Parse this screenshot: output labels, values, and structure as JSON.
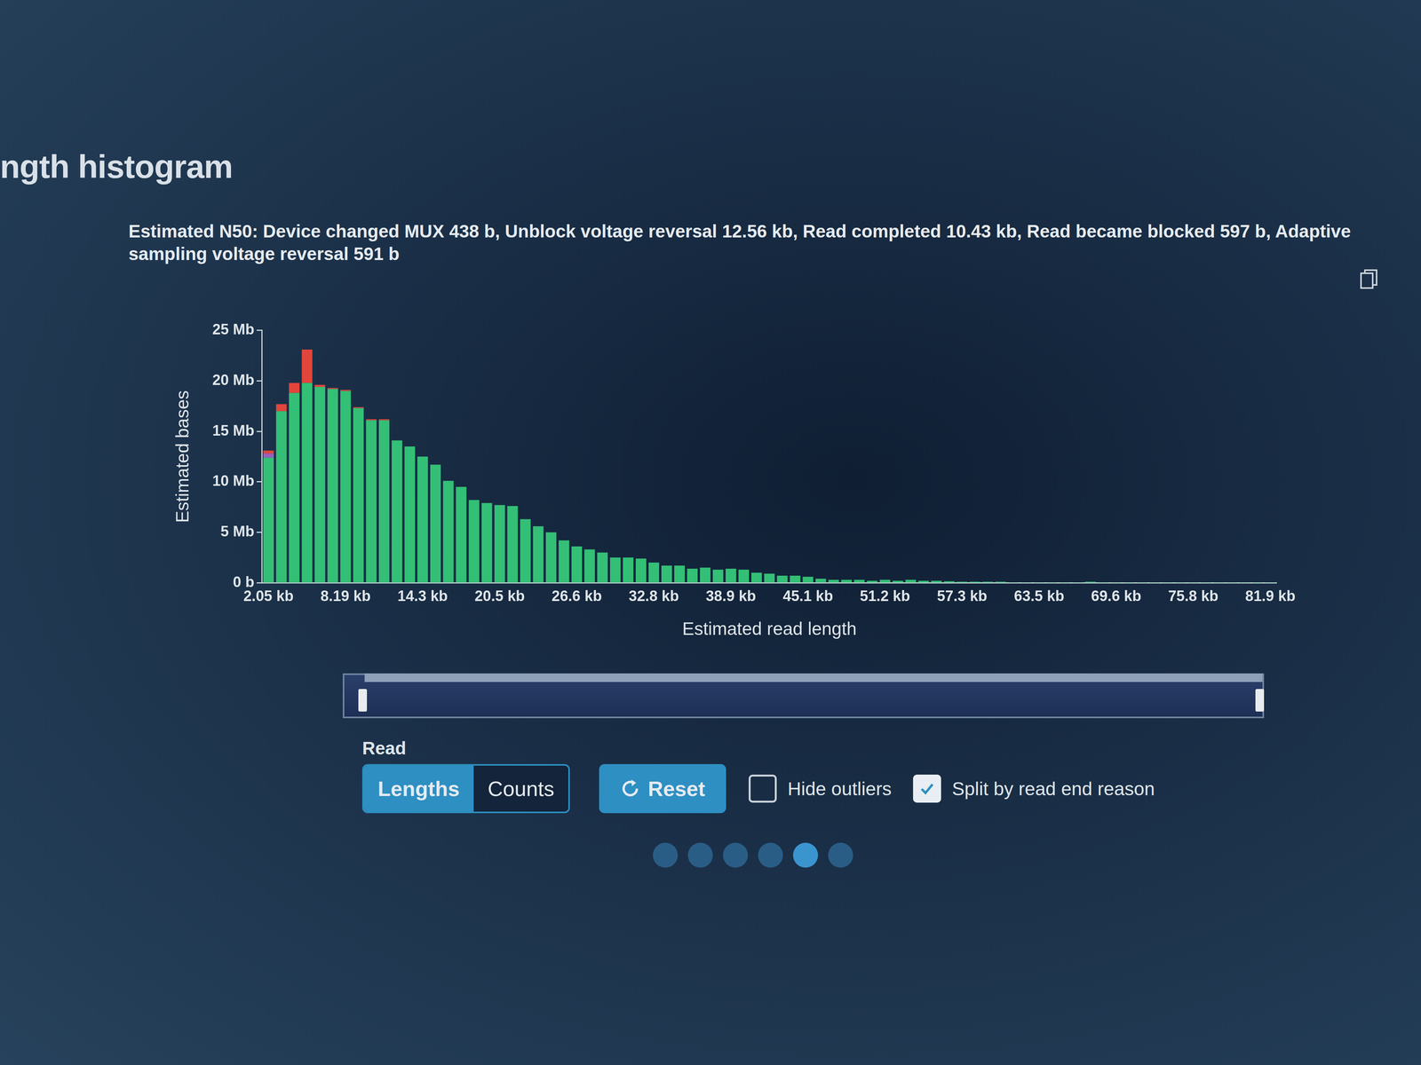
{
  "chart_data": {
    "type": "bar",
    "title": "ngth histogram",
    "subtitle": "Estimated N50: Device changed MUX 438 b, Unblock voltage reversal 12.56 kb, Read completed 10.43 kb, Read became blocked 597 b, Adaptive sampling voltage reversal 591 b",
    "x_label": "Estimated read length",
    "y_label": "Estimated bases",
    "categories": [
      "2.05 kb",
      null,
      null,
      null,
      null,
      null,
      "8.19 kb",
      null,
      null,
      null,
      null,
      null,
      "14.3 kb",
      null,
      null,
      null,
      null,
      null,
      "20.5 kb",
      null,
      null,
      null,
      null,
      null,
      "26.6 kb",
      null,
      null,
      null,
      null,
      null,
      "32.8 kb",
      null,
      null,
      null,
      null,
      null,
      "38.9 kb",
      null,
      null,
      null,
      null,
      null,
      "45.1 kb",
      null,
      null,
      null,
      null,
      null,
      "51.2 kb",
      null,
      null,
      null,
      null,
      null,
      "57.3 kb",
      null,
      null,
      null,
      null,
      null,
      "63.5 kb",
      null,
      null,
      null,
      null,
      null,
      "69.6 kb",
      null,
      null,
      null,
      null,
      null,
      "75.8 kb",
      null,
      null,
      null,
      null,
      null,
      "81.9 kb"
    ],
    "series": [
      {
        "color": "#34bf76",
        "values": [
          12.4,
          17.0,
          18.8,
          19.8,
          19.4,
          19.2,
          19.0,
          17.3,
          16.1,
          16.1,
          14.1,
          13.5,
          12.5,
          11.7,
          10.1,
          9.5,
          8.2,
          7.9,
          7.7,
          7.6,
          6.3,
          5.6,
          5.0,
          4.2,
          3.6,
          3.3,
          3.0,
          2.5,
          2.5,
          2.4,
          2.0,
          1.7,
          1.7,
          1.4,
          1.5,
          1.3,
          1.4,
          1.3,
          1.0,
          0.9,
          0.7,
          0.7,
          0.6,
          0.4,
          0.3,
          0.3,
          0.3,
          0.2,
          0.3,
          0.2,
          0.3,
          0.2,
          0.2,
          0.15,
          0.1,
          0.1,
          0.1,
          0.1,
          0.05,
          0.05,
          0.05,
          0.05,
          0.05,
          0.05,
          0.1,
          0.05,
          0.05,
          0.05,
          0.05,
          0.05,
          0.05,
          0.05,
          0.05,
          0.05,
          0.05,
          0.05,
          0.05,
          0.05,
          0.05
        ]
      },
      {
        "color": "#9b5fc0",
        "values": [
          0.4,
          0,
          0,
          0,
          0,
          0,
          0,
          0,
          0,
          0,
          0,
          0,
          0,
          0,
          0,
          0,
          0,
          0,
          0,
          0,
          0,
          0,
          0,
          0,
          0,
          0,
          0,
          0,
          0,
          0,
          0,
          0,
          0,
          0,
          0,
          0,
          0,
          0,
          0,
          0,
          0,
          0,
          0,
          0,
          0,
          0,
          0,
          0,
          0,
          0,
          0,
          0,
          0,
          0,
          0,
          0,
          0,
          0,
          0,
          0,
          0,
          0,
          0,
          0,
          0,
          0,
          0,
          0,
          0,
          0,
          0,
          0,
          0,
          0,
          0,
          0,
          0,
          0,
          0
        ]
      },
      {
        "color": "#e2453b",
        "values": [
          0.3,
          0.7,
          1.0,
          3.3,
          0.2,
          0.1,
          0.1,
          0.1,
          0.1,
          0.1,
          0,
          0,
          0,
          0,
          0,
          0,
          0,
          0,
          0,
          0,
          0,
          0,
          0,
          0,
          0,
          0,
          0,
          0,
          0,
          0,
          0,
          0,
          0,
          0,
          0,
          0,
          0,
          0,
          0,
          0,
          0,
          0,
          0,
          0,
          0,
          0,
          0,
          0,
          0,
          0,
          0,
          0,
          0,
          0,
          0,
          0,
          0,
          0,
          0,
          0,
          0,
          0,
          0,
          0,
          0,
          0,
          0,
          0,
          0,
          0,
          0,
          0,
          0,
          0,
          0,
          0,
          0,
          0,
          0
        ]
      }
    ],
    "stacked": true,
    "ylim": [
      0,
      25
    ],
    "yticks": [
      {
        "value": 0,
        "label": "0 b"
      },
      {
        "value": 5,
        "label": "5 Mb"
      },
      {
        "value": 10,
        "label": "10 Mb"
      },
      {
        "value": 15,
        "label": "15 Mb"
      },
      {
        "value": 20,
        "label": "20 Mb"
      },
      {
        "value": 25,
        "label": "25 Mb"
      }
    ],
    "grid": false
  },
  "controls": {
    "group_label": "Read",
    "toggle": [
      "Lengths",
      "Counts"
    ],
    "active": "Lengths",
    "reset": "Reset",
    "checkboxes": [
      {
        "label": "Hide outliers",
        "checked": false
      },
      {
        "label": "Split by read end reason",
        "checked": true
      }
    ],
    "pager": {
      "count": 6,
      "active": 5
    }
  }
}
